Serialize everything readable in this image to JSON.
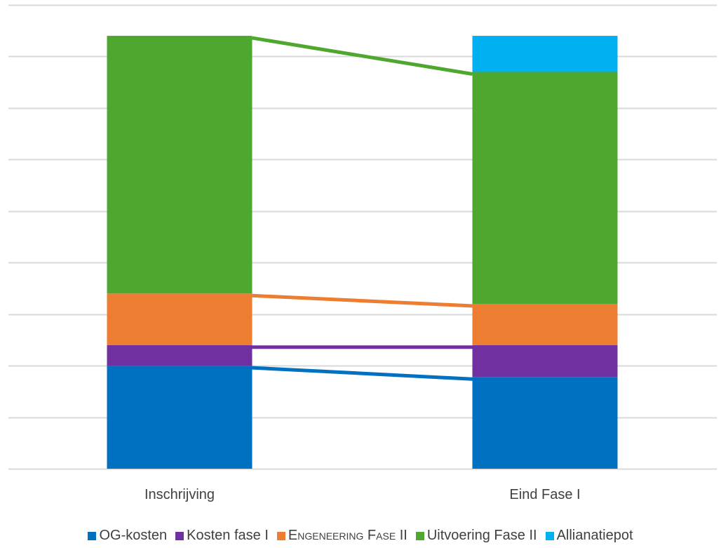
{
  "chart_data": {
    "type": "bar",
    "stacked": true,
    "categories": [
      "Inschrijving",
      "Eind Fase I"
    ],
    "series": [
      {
        "name": "OG-kosten",
        "color": "#0070C0",
        "values": [
          20,
          17.8
        ]
      },
      {
        "name": "Kosten fase I",
        "color": "#7030A0",
        "values": [
          4,
          6.2
        ]
      },
      {
        "name": "Engeneering Fase II",
        "color": "#ED7D31",
        "values": [
          10,
          8
        ]
      },
      {
        "name": "Uitvoering Fase II",
        "color": "#4EA72E",
        "values": [
          50,
          45
        ]
      },
      {
        "name": "Allianatiepot",
        "color": "#00B0F0",
        "values": [
          0,
          7
        ]
      }
    ],
    "title": "",
    "xlabel": "",
    "ylabel": "",
    "ylim": [
      0,
      90
    ],
    "grid": true,
    "legend": "bottom",
    "connector_lines": true,
    "y_tick_labels_visible": false
  }
}
